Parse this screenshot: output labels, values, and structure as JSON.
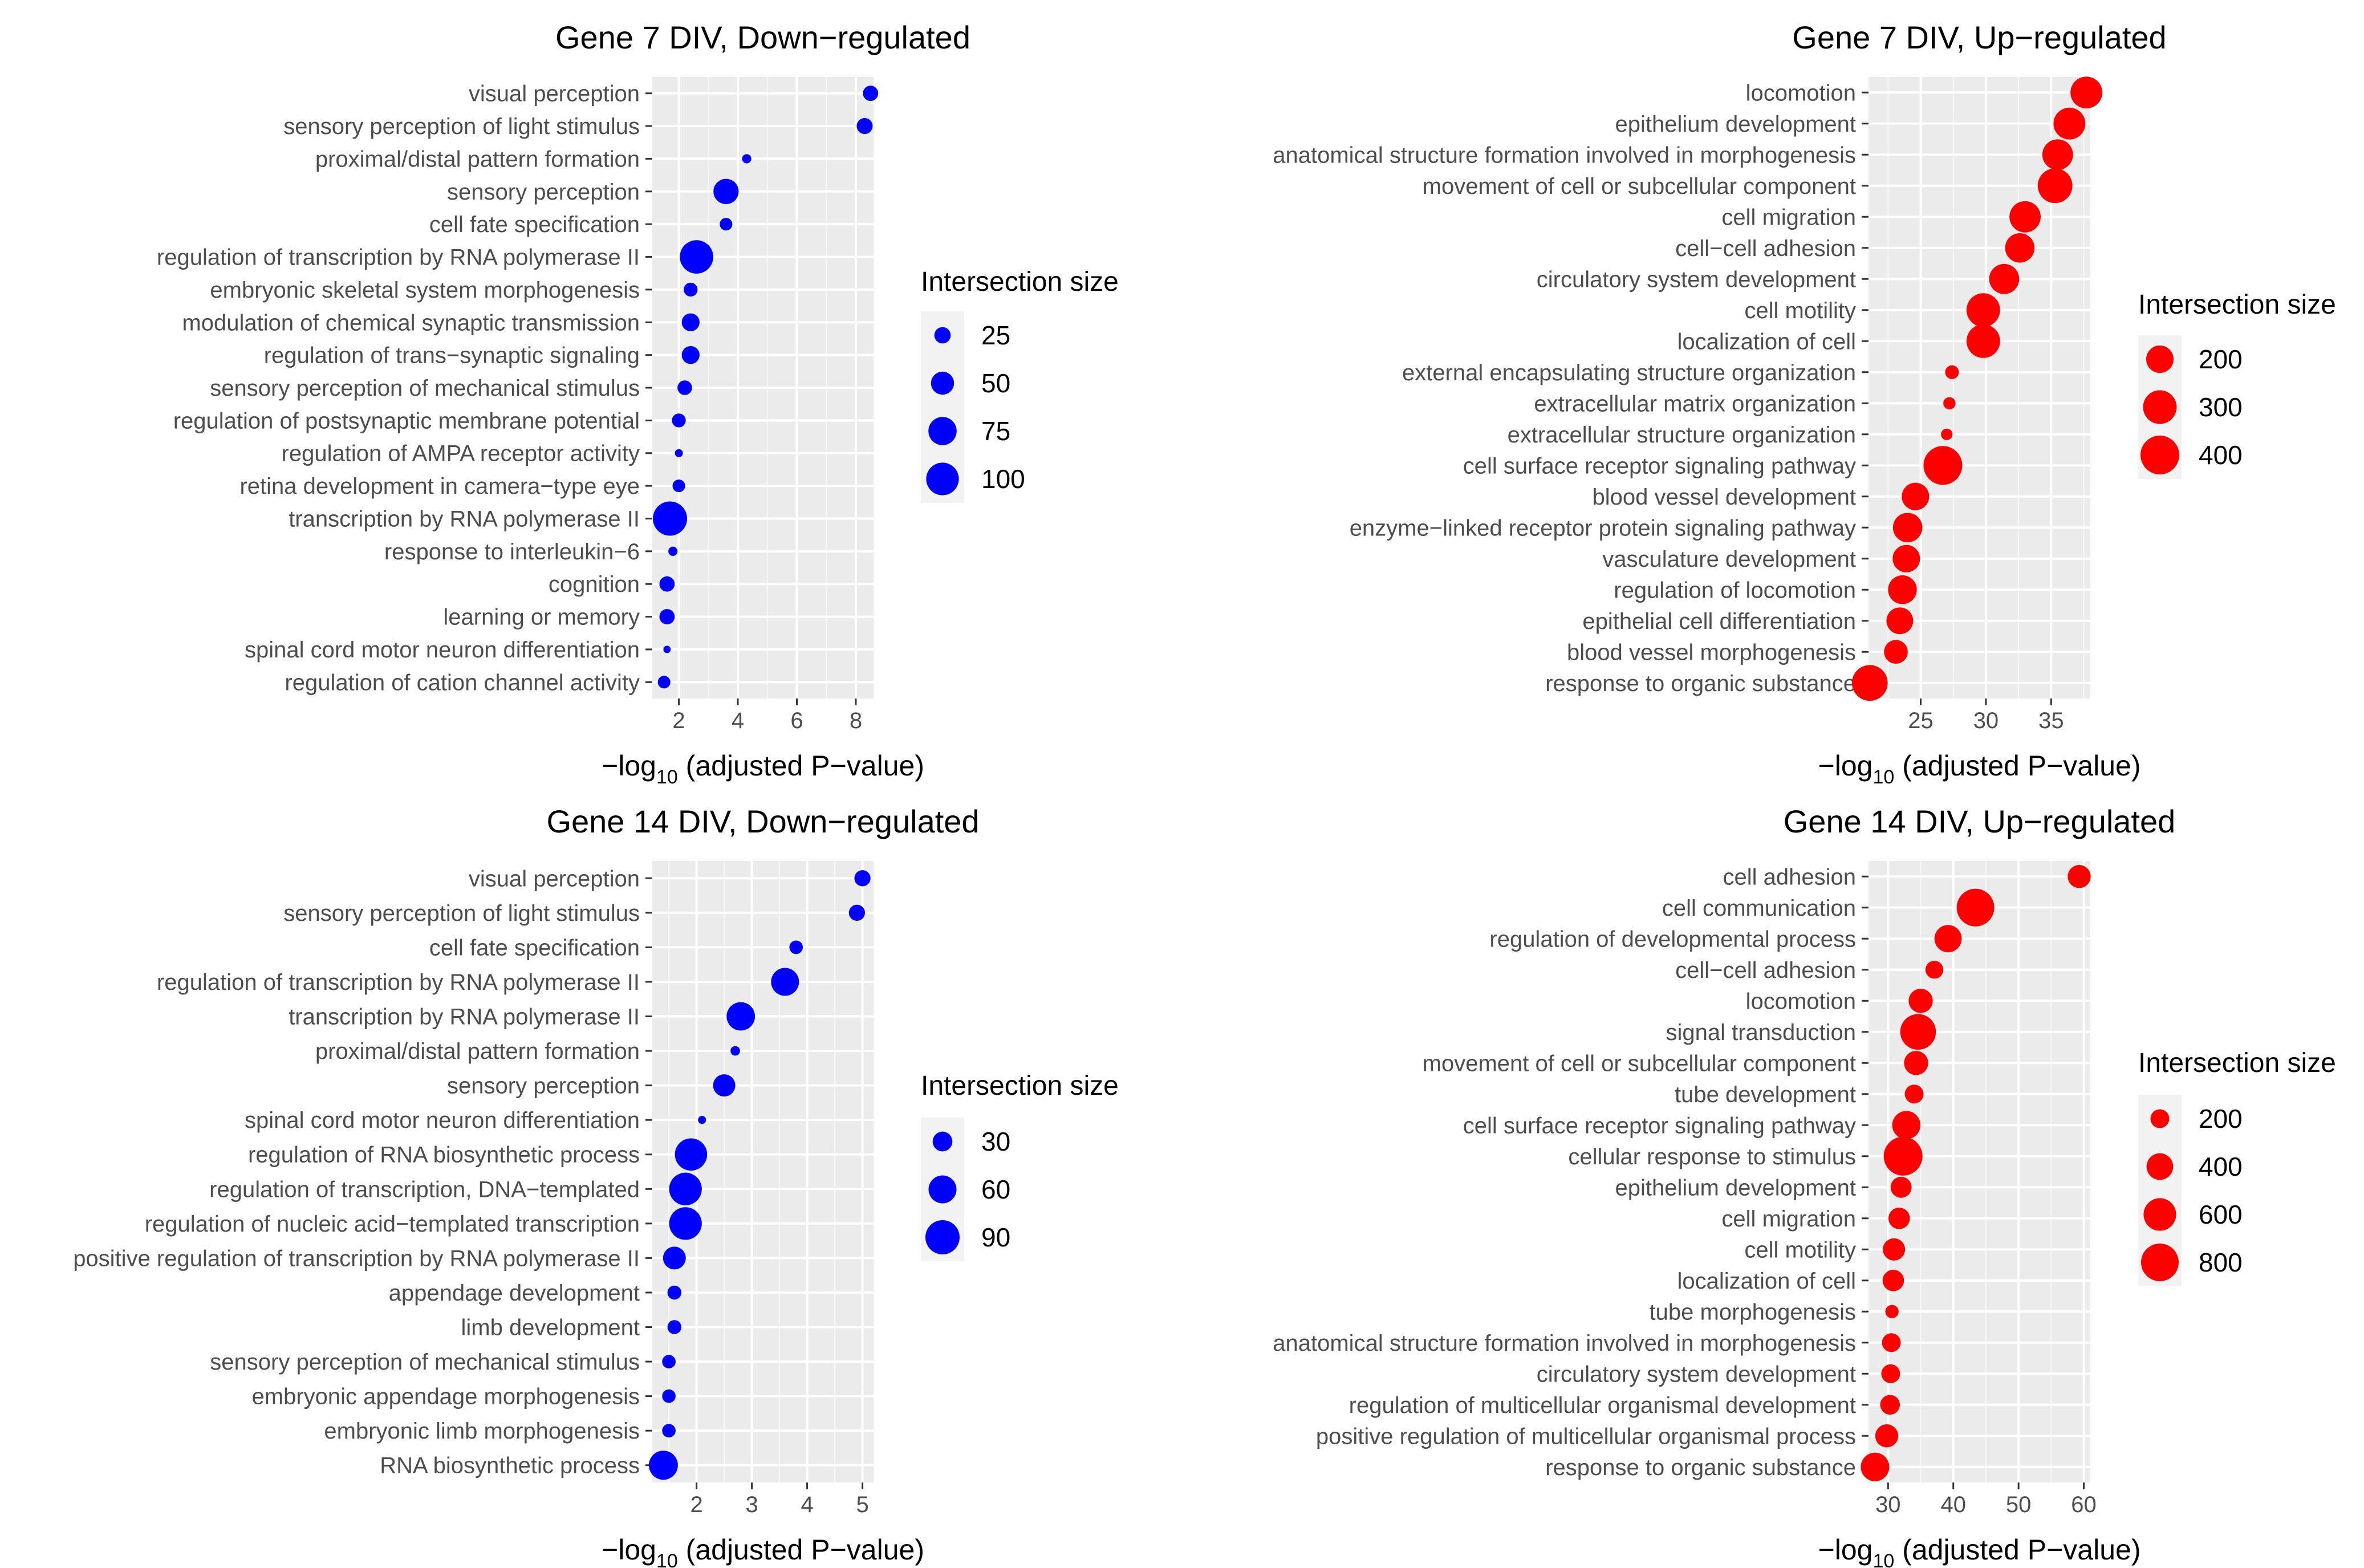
{
  "chart_data": [
    {
      "type": "scatter",
      "title": "Gene 7 DIV, Down−regulated",
      "xlabel": {
        "prefix": "−log",
        "sub": "10",
        "suffix": " (adjusted P−value)"
      },
      "xlim": [
        1.1,
        8.6
      ],
      "xticks": [
        2,
        4,
        6,
        8
      ],
      "categories": [
        "visual perception",
        "sensory perception of light stimulus",
        "proximal/distal pattern formation",
        "sensory perception",
        "cell fate specification",
        "regulation of transcription by RNA polymerase II",
        "embryonic skeletal system morphogenesis",
        "modulation of chemical synaptic transmission",
        "regulation of trans−synaptic signaling",
        "sensory perception of mechanical stimulus",
        "regulation of postsynaptic membrane potential",
        "regulation of AMPA receptor activity",
        "retina development in camera−type eye",
        "transcription by RNA polymerase II",
        "response to interleukin−6",
        "cognition",
        "learning or memory",
        "spinal cord motor neuron differentiation",
        "regulation of cation channel activity"
      ],
      "x": [
        8.5,
        8.3,
        4.3,
        3.6,
        3.6,
        2.6,
        2.4,
        2.4,
        2.4,
        2.2,
        2.0,
        2.0,
        2.0,
        1.7,
        1.8,
        1.6,
        1.6,
        1.6,
        1.5
      ],
      "sizes": [
        22,
        24,
        8,
        60,
        15,
        105,
        18,
        30,
        30,
        20,
        18,
        6,
        15,
        110,
        8,
        22,
        22,
        5,
        15
      ],
      "size_legend": {
        "title": "Intersection size",
        "values": [
          25,
          50,
          75,
          100
        ]
      },
      "color": "#0000ff"
    },
    {
      "type": "scatter",
      "title": "Gene 7 DIV, Up−regulated",
      "xlabel": {
        "prefix": "−log",
        "sub": "10",
        "suffix": " (adjusted P−value)"
      },
      "xlim": [
        21.0,
        38.0
      ],
      "xticks": [
        25,
        30,
        35
      ],
      "categories": [
        "locomotion",
        "epithelium development",
        "anatomical structure formation involved in morphogenesis",
        "movement of cell or subcellular component",
        "cell migration",
        "cell−cell adhesion",
        "circulatory system development",
        "cell motility",
        "localization of cell",
        "external encapsulating structure organization",
        "extracellular matrix organization",
        "extracellular structure organization",
        "cell surface receptor signaling pathway",
        "blood vessel development",
        "enzyme−linked receptor protein signaling pathway",
        "vasculature development",
        "regulation of locomotion",
        "epithelial cell differentiation",
        "blood vessel morphogenesis",
        "response to organic substance"
      ],
      "x": [
        37.7,
        36.4,
        35.5,
        35.3,
        33.0,
        32.6,
        31.4,
        29.8,
        29.8,
        27.4,
        27.2,
        27.0,
        26.7,
        24.6,
        24.0,
        23.9,
        23.6,
        23.4,
        23.1,
        21.1
      ],
      "sizes": [
        270,
        270,
        250,
        320,
        260,
        230,
        240,
        300,
        300,
        50,
        40,
        35,
        400,
        200,
        230,
        200,
        220,
        190,
        150,
        340
      ],
      "size_legend": {
        "title": "Intersection size",
        "values": [
          200,
          300,
          400
        ]
      },
      "color": "#ff0000"
    },
    {
      "type": "scatter",
      "title": "Gene 14 DIV, Down−regulated",
      "xlabel": {
        "prefix": "−log",
        "sub": "10",
        "suffix": " (adjusted P−value)"
      },
      "xlim": [
        1.2,
        5.2
      ],
      "xticks": [
        2,
        3,
        4,
        5
      ],
      "categories": [
        "visual perception",
        "sensory perception of light stimulus",
        "cell fate specification",
        "regulation of transcription by RNA polymerase II",
        "transcription by RNA polymerase II",
        "proximal/distal pattern formation",
        "sensory perception",
        "spinal cord motor neuron differentiation",
        "regulation of RNA biosynthetic process",
        "regulation of transcription, DNA−templated",
        "regulation of nucleic acid−templated transcription",
        "positive regulation of transcription by RNA polymerase II",
        "appendage development",
        "limb development",
        "sensory perception of mechanical stimulus",
        "embryonic appendage morphogenesis",
        "embryonic limb morphogenesis",
        "RNA biosynthetic process"
      ],
      "x": [
        5.0,
        4.9,
        3.8,
        3.6,
        2.8,
        2.7,
        2.5,
        2.1,
        1.9,
        1.8,
        1.8,
        1.6,
        1.6,
        1.6,
        1.5,
        1.5,
        1.5,
        1.4
      ],
      "sizes": [
        20,
        20,
        14,
        60,
        62,
        7,
        38,
        5,
        80,
        82,
        82,
        40,
        15,
        15,
        14,
        14,
        14,
        65
      ],
      "size_legend": {
        "title": "Intersection size",
        "values": [
          30,
          60,
          90
        ]
      },
      "color": "#0000ff"
    },
    {
      "type": "scatter",
      "title": "Gene 14 DIV, Up−regulated",
      "xlabel": {
        "prefix": "−log",
        "sub": "10",
        "suffix": " (adjusted P−value)"
      },
      "xlim": [
        27.0,
        61.0
      ],
      "xticks": [
        30,
        40,
        50,
        60
      ],
      "categories": [
        "cell adhesion",
        "cell communication",
        "regulation of developmental process",
        "cell−cell adhesion",
        "locomotion",
        "signal transduction",
        "movement of cell or subcellular component",
        "tube development",
        "cell surface receptor signaling pathway",
        "cellular response to stimulus",
        "epithelium development",
        "cell migration",
        "cell motility",
        "localization of cell",
        "tube morphogenesis",
        "anatomical structure formation involved in morphogenesis",
        "circulatory system development",
        "regulation of multicellular organismal development",
        "positive regulation of multicellular organismal process",
        "response to organic substance"
      ],
      "x": [
        59.3,
        43.4,
        39.2,
        37.1,
        35.0,
        34.6,
        34.3,
        34.0,
        32.8,
        32.3,
        32.0,
        31.7,
        30.9,
        30.8,
        30.6,
        30.5,
        30.4,
        30.3,
        29.8,
        28.0
      ],
      "sizes": [
        300,
        800,
        420,
        180,
        330,
        720,
        330,
        200,
        450,
        850,
        250,
        260,
        280,
        260,
        100,
        200,
        200,
        220,
        300,
        460
      ],
      "size_legend": {
        "title": "Intersection size",
        "values": [
          200,
          400,
          600,
          800
        ]
      },
      "color": "#ff0000"
    }
  ]
}
